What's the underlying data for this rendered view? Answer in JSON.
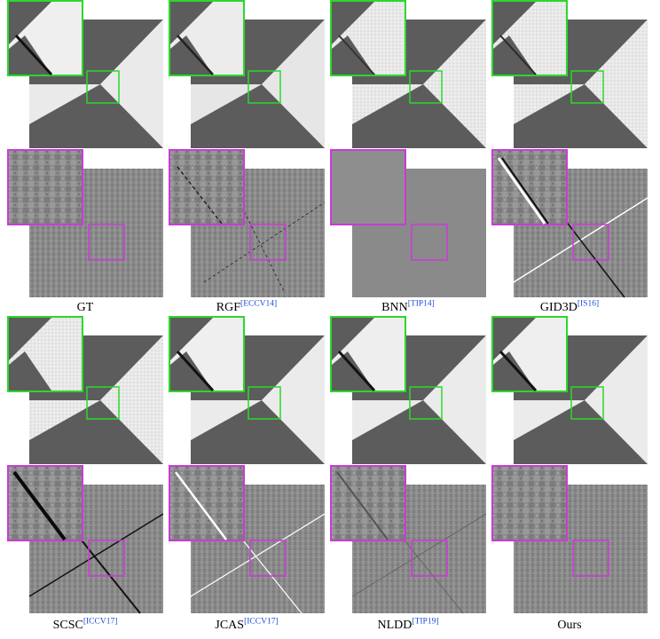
{
  "colors": {
    "green_box": "#2bd82b",
    "magenta_box": "#c93bd6",
    "dark_region": "#5a5a5a",
    "light_region": "#e9e9e9",
    "texture_gray": "#8a8a8a",
    "citation": "#1f4fd8"
  },
  "methods": [
    {
      "name": "GT",
      "ref": ""
    },
    {
      "name": "RGF",
      "ref": "[ECCV14]"
    },
    {
      "name": "BNN",
      "ref": "[TIP14]"
    },
    {
      "name": "GID3D",
      "ref": "[IS16]"
    },
    {
      "name": "SCSC",
      "ref": "[ICCV17]"
    },
    {
      "name": "JCAS",
      "ref": "[ICCV17]"
    },
    {
      "name": "NLDD",
      "ref": "[TIP19]"
    },
    {
      "name": "Ours",
      "ref": ""
    }
  ]
}
